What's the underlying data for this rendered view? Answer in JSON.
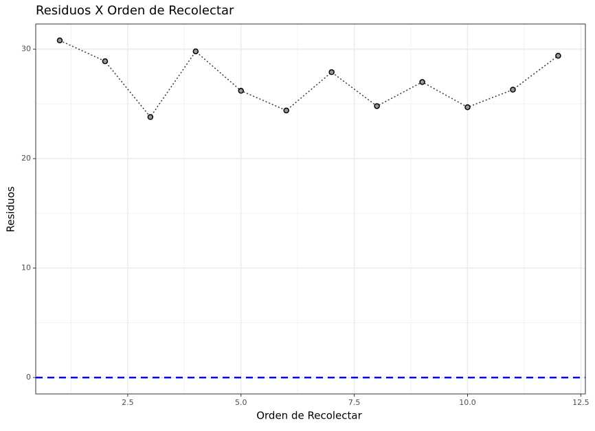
{
  "chart_data": {
    "type": "line",
    "title": "Residuos X Orden de Recolectar",
    "xlabel": "Orden de Recolectar",
    "ylabel": "Residuos",
    "x": [
      1,
      2,
      3,
      4,
      5,
      6,
      7,
      8,
      9,
      10,
      11,
      12
    ],
    "series": [
      {
        "values": [
          30.8,
          28.9,
          23.8,
          29.8,
          26.2,
          24.4,
          27.9,
          24.8,
          27.0,
          24.7,
          26.3,
          29.4
        ],
        "color": "#333333",
        "point_fill": "#999999"
      }
    ],
    "xlim": [
      0.47,
      12.6
    ],
    "ylim": [
      -1.5,
      32.3
    ],
    "xticks": [
      2.5,
      {
        "value": 5,
        "label": "5.0"
      },
      7.5,
      {
        "value": 10,
        "label": "10.0"
      },
      12.5
    ],
    "yticks": [
      0,
      10,
      20,
      30
    ],
    "hline": {
      "value": 0,
      "color": "#0000ff"
    },
    "grid": true
  }
}
